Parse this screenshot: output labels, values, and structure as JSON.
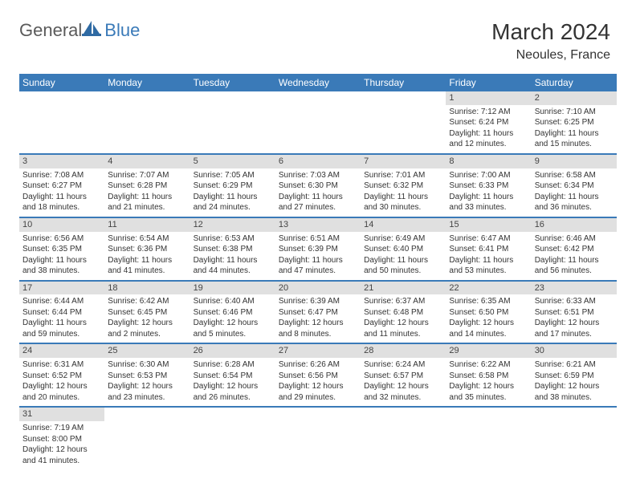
{
  "brand": {
    "part1": "General",
    "part2": "Blue"
  },
  "title": "March 2024",
  "location": "Neoules, France",
  "colors": {
    "header_bg": "#3a7ab8",
    "header_fg": "#ffffff",
    "daynum_bg": "#e0e0e0",
    "row_border": "#3a7ab8",
    "page_bg": "#ffffff",
    "text": "#333333"
  },
  "weekdays": [
    "Sunday",
    "Monday",
    "Tuesday",
    "Wednesday",
    "Thursday",
    "Friday",
    "Saturday"
  ],
  "weeks": [
    [
      {
        "n": "",
        "sr": "",
        "ss": "",
        "dl": ""
      },
      {
        "n": "",
        "sr": "",
        "ss": "",
        "dl": ""
      },
      {
        "n": "",
        "sr": "",
        "ss": "",
        "dl": ""
      },
      {
        "n": "",
        "sr": "",
        "ss": "",
        "dl": ""
      },
      {
        "n": "",
        "sr": "",
        "ss": "",
        "dl": ""
      },
      {
        "n": "1",
        "sr": "Sunrise: 7:12 AM",
        "ss": "Sunset: 6:24 PM",
        "dl": "Daylight: 11 hours and 12 minutes."
      },
      {
        "n": "2",
        "sr": "Sunrise: 7:10 AM",
        "ss": "Sunset: 6:25 PM",
        "dl": "Daylight: 11 hours and 15 minutes."
      }
    ],
    [
      {
        "n": "3",
        "sr": "Sunrise: 7:08 AM",
        "ss": "Sunset: 6:27 PM",
        "dl": "Daylight: 11 hours and 18 minutes."
      },
      {
        "n": "4",
        "sr": "Sunrise: 7:07 AM",
        "ss": "Sunset: 6:28 PM",
        "dl": "Daylight: 11 hours and 21 minutes."
      },
      {
        "n": "5",
        "sr": "Sunrise: 7:05 AM",
        "ss": "Sunset: 6:29 PM",
        "dl": "Daylight: 11 hours and 24 minutes."
      },
      {
        "n": "6",
        "sr": "Sunrise: 7:03 AM",
        "ss": "Sunset: 6:30 PM",
        "dl": "Daylight: 11 hours and 27 minutes."
      },
      {
        "n": "7",
        "sr": "Sunrise: 7:01 AM",
        "ss": "Sunset: 6:32 PM",
        "dl": "Daylight: 11 hours and 30 minutes."
      },
      {
        "n": "8",
        "sr": "Sunrise: 7:00 AM",
        "ss": "Sunset: 6:33 PM",
        "dl": "Daylight: 11 hours and 33 minutes."
      },
      {
        "n": "9",
        "sr": "Sunrise: 6:58 AM",
        "ss": "Sunset: 6:34 PM",
        "dl": "Daylight: 11 hours and 36 minutes."
      }
    ],
    [
      {
        "n": "10",
        "sr": "Sunrise: 6:56 AM",
        "ss": "Sunset: 6:35 PM",
        "dl": "Daylight: 11 hours and 38 minutes."
      },
      {
        "n": "11",
        "sr": "Sunrise: 6:54 AM",
        "ss": "Sunset: 6:36 PM",
        "dl": "Daylight: 11 hours and 41 minutes."
      },
      {
        "n": "12",
        "sr": "Sunrise: 6:53 AM",
        "ss": "Sunset: 6:38 PM",
        "dl": "Daylight: 11 hours and 44 minutes."
      },
      {
        "n": "13",
        "sr": "Sunrise: 6:51 AM",
        "ss": "Sunset: 6:39 PM",
        "dl": "Daylight: 11 hours and 47 minutes."
      },
      {
        "n": "14",
        "sr": "Sunrise: 6:49 AM",
        "ss": "Sunset: 6:40 PM",
        "dl": "Daylight: 11 hours and 50 minutes."
      },
      {
        "n": "15",
        "sr": "Sunrise: 6:47 AM",
        "ss": "Sunset: 6:41 PM",
        "dl": "Daylight: 11 hours and 53 minutes."
      },
      {
        "n": "16",
        "sr": "Sunrise: 6:46 AM",
        "ss": "Sunset: 6:42 PM",
        "dl": "Daylight: 11 hours and 56 minutes."
      }
    ],
    [
      {
        "n": "17",
        "sr": "Sunrise: 6:44 AM",
        "ss": "Sunset: 6:44 PM",
        "dl": "Daylight: 11 hours and 59 minutes."
      },
      {
        "n": "18",
        "sr": "Sunrise: 6:42 AM",
        "ss": "Sunset: 6:45 PM",
        "dl": "Daylight: 12 hours and 2 minutes."
      },
      {
        "n": "19",
        "sr": "Sunrise: 6:40 AM",
        "ss": "Sunset: 6:46 PM",
        "dl": "Daylight: 12 hours and 5 minutes."
      },
      {
        "n": "20",
        "sr": "Sunrise: 6:39 AM",
        "ss": "Sunset: 6:47 PM",
        "dl": "Daylight: 12 hours and 8 minutes."
      },
      {
        "n": "21",
        "sr": "Sunrise: 6:37 AM",
        "ss": "Sunset: 6:48 PM",
        "dl": "Daylight: 12 hours and 11 minutes."
      },
      {
        "n": "22",
        "sr": "Sunrise: 6:35 AM",
        "ss": "Sunset: 6:50 PM",
        "dl": "Daylight: 12 hours and 14 minutes."
      },
      {
        "n": "23",
        "sr": "Sunrise: 6:33 AM",
        "ss": "Sunset: 6:51 PM",
        "dl": "Daylight: 12 hours and 17 minutes."
      }
    ],
    [
      {
        "n": "24",
        "sr": "Sunrise: 6:31 AM",
        "ss": "Sunset: 6:52 PM",
        "dl": "Daylight: 12 hours and 20 minutes."
      },
      {
        "n": "25",
        "sr": "Sunrise: 6:30 AM",
        "ss": "Sunset: 6:53 PM",
        "dl": "Daylight: 12 hours and 23 minutes."
      },
      {
        "n": "26",
        "sr": "Sunrise: 6:28 AM",
        "ss": "Sunset: 6:54 PM",
        "dl": "Daylight: 12 hours and 26 minutes."
      },
      {
        "n": "27",
        "sr": "Sunrise: 6:26 AM",
        "ss": "Sunset: 6:56 PM",
        "dl": "Daylight: 12 hours and 29 minutes."
      },
      {
        "n": "28",
        "sr": "Sunrise: 6:24 AM",
        "ss": "Sunset: 6:57 PM",
        "dl": "Daylight: 12 hours and 32 minutes."
      },
      {
        "n": "29",
        "sr": "Sunrise: 6:22 AM",
        "ss": "Sunset: 6:58 PM",
        "dl": "Daylight: 12 hours and 35 minutes."
      },
      {
        "n": "30",
        "sr": "Sunrise: 6:21 AM",
        "ss": "Sunset: 6:59 PM",
        "dl": "Daylight: 12 hours and 38 minutes."
      }
    ],
    [
      {
        "n": "31",
        "sr": "Sunrise: 7:19 AM",
        "ss": "Sunset: 8:00 PM",
        "dl": "Daylight: 12 hours and 41 minutes."
      },
      {
        "n": "",
        "sr": "",
        "ss": "",
        "dl": ""
      },
      {
        "n": "",
        "sr": "",
        "ss": "",
        "dl": ""
      },
      {
        "n": "",
        "sr": "",
        "ss": "",
        "dl": ""
      },
      {
        "n": "",
        "sr": "",
        "ss": "",
        "dl": ""
      },
      {
        "n": "",
        "sr": "",
        "ss": "",
        "dl": ""
      },
      {
        "n": "",
        "sr": "",
        "ss": "",
        "dl": ""
      }
    ]
  ]
}
